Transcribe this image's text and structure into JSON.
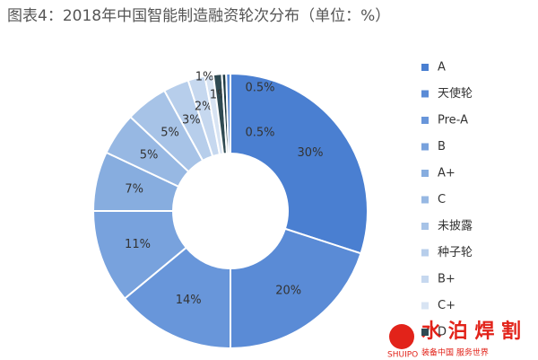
{
  "chart_data": {
    "type": "donut",
    "title": "图表4：2018年中国智能制造融资轮次分布（单位：%）",
    "categories": [
      "A",
      "天使轮",
      "Pre-A",
      "B",
      "A+",
      "C",
      "未披露",
      "种子轮",
      "B+",
      "C+",
      "D",
      null,
      null
    ],
    "values": [
      30,
      20,
      14,
      11,
      7,
      5,
      5,
      3,
      2,
      1,
      1,
      0.5,
      0.5
    ],
    "value_labels": [
      "30%",
      "20%",
      "14%",
      "11%",
      "7%",
      "5%",
      "5%",
      "3%",
      "2%",
      "1%",
      "1%",
      "0.5%",
      "0.5%"
    ],
    "colors": [
      "#4a7fd1",
      "#5a8bd6",
      "#6896da",
      "#78a2dd",
      "#87addf",
      "#97b8e3",
      "#a7c3e7",
      "#b7ceeb",
      "#c6d8ef",
      "#d8e4f3",
      "#2f4a52",
      "#1f3b45",
      "#5a8bd6"
    ],
    "legend": "right"
  },
  "watermark": {
    "name": "水 泊 焊 割",
    "brand": "SHUIPO",
    "slogan": "装备中国 服务世界"
  }
}
